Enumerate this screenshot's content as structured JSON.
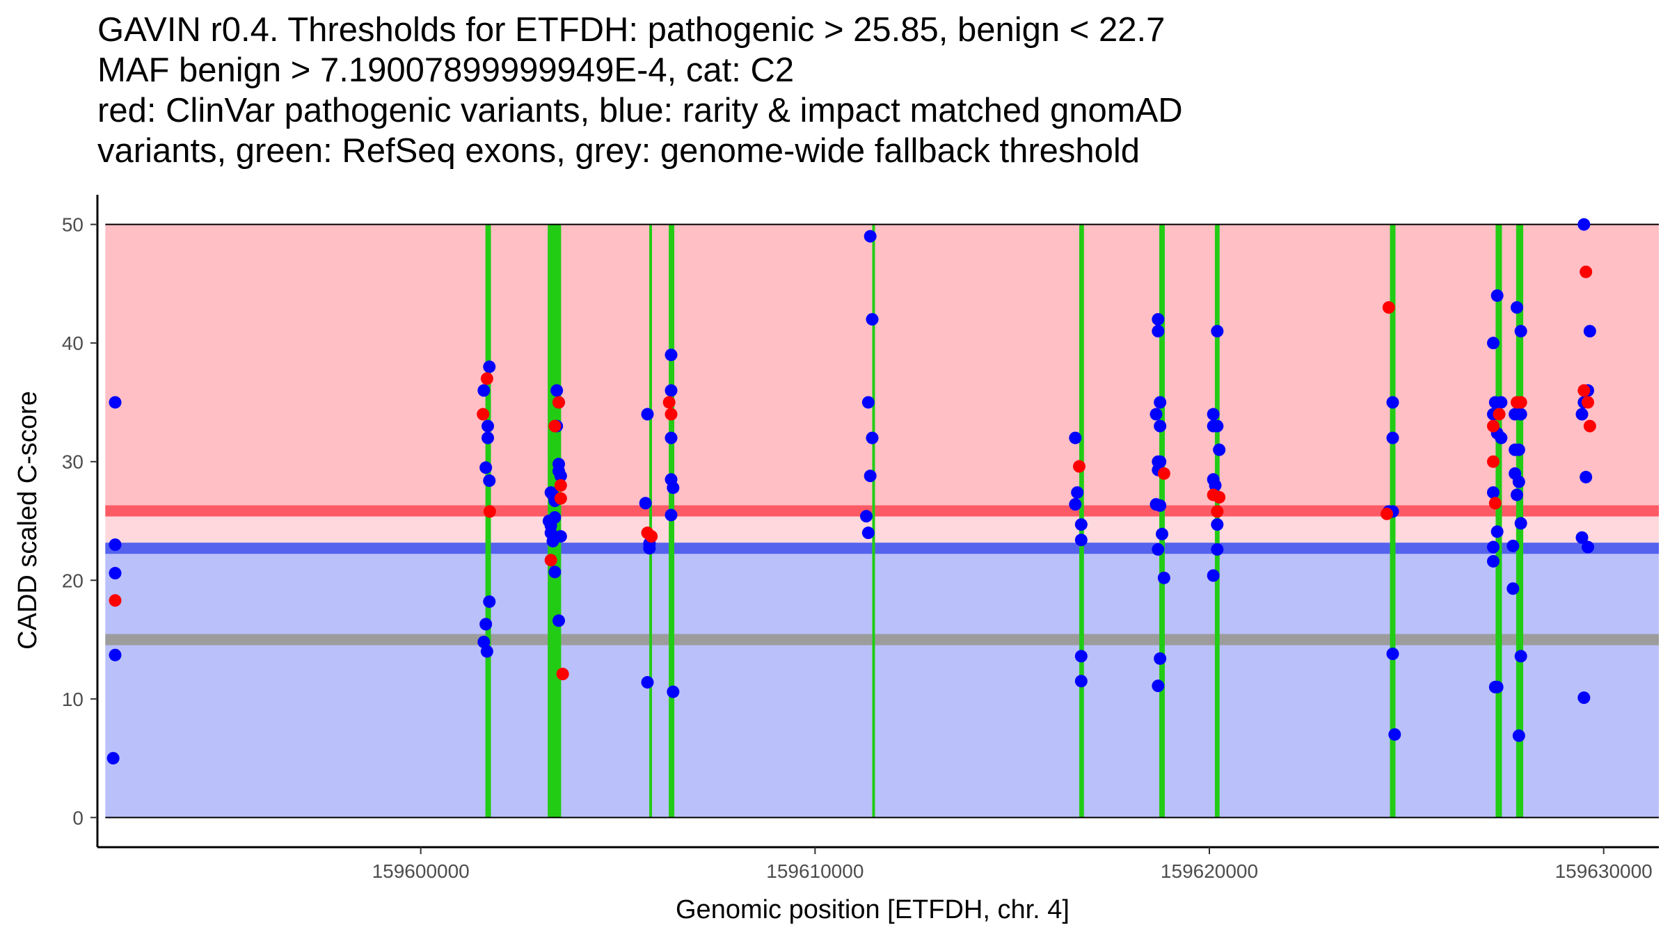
{
  "title": {
    "lines": [
      "GAVIN r0.4. Thresholds for ETFDH: pathogenic > 25.85, benign < 22.7",
      "MAF benign > 7.19007899999949E-4, cat: C2",
      "red: ClinVar pathogenic variants, blue: rarity & impact matched gnomAD",
      "variants, green: RefSeq exons, grey: genome-wide fallback threshold"
    ]
  },
  "chart_data": {
    "type": "scatter",
    "xlabel": "Genomic position [ETFDH, chr. 4]",
    "ylabel": "CADD scaled C-score",
    "xlim": [
      159591800,
      159631400
    ],
    "ylim": [
      -2.5,
      52.5
    ],
    "x_ticks": [
      159600000,
      159610000,
      159620000,
      159630000
    ],
    "x_tick_labels": [
      "159600000",
      "159610000",
      "159620000",
      "159630000"
    ],
    "y_ticks": [
      0,
      10,
      20,
      30,
      40,
      50
    ],
    "y_tick_labels": [
      "0",
      "10",
      "20",
      "30",
      "40",
      "50"
    ],
    "region": {
      "x_start": 159592000,
      "x_end": 159631400
    },
    "bands": [
      {
        "name": "pathogenic-zone",
        "y0": 25.85,
        "y1": 50,
        "color": "#ffbfc5"
      },
      {
        "name": "grey-zone",
        "y0": 22.7,
        "y1": 25.85,
        "color": "#ffd8dd"
      },
      {
        "name": "benign-zone",
        "y0": 0,
        "y1": 22.7,
        "color": "#bac0fa"
      }
    ],
    "thresholds": [
      {
        "name": "pathogenic-threshold",
        "y": 25.85,
        "color": "#fc5b66"
      },
      {
        "name": "benign-threshold",
        "y": 22.7,
        "color": "#5462ee"
      },
      {
        "name": "fallback-threshold",
        "y": 15.0,
        "color": "#9c9c9c"
      }
    ],
    "exons": [
      {
        "start": 159601640,
        "end": 159601780
      },
      {
        "start": 159603220,
        "end": 159603560
      },
      {
        "start": 159605800,
        "end": 159605860
      },
      {
        "start": 159606290,
        "end": 159606430
      },
      {
        "start": 159611450,
        "end": 159611520
      },
      {
        "start": 159616700,
        "end": 159616820
      },
      {
        "start": 159618730,
        "end": 159618870
      },
      {
        "start": 159620140,
        "end": 159620260
      },
      {
        "start": 159624580,
        "end": 159624720
      },
      {
        "start": 159627260,
        "end": 159627420
      },
      {
        "start": 159627780,
        "end": 159627960
      }
    ],
    "series": [
      {
        "name": "gnomAD variants",
        "color": "#0000ff",
        "points": [
          [
            159592250,
            35
          ],
          [
            159592250,
            23
          ],
          [
            159592250,
            20.6
          ],
          [
            159592250,
            13.7
          ],
          [
            159592200,
            5
          ],
          [
            159601600,
            36
          ],
          [
            159601650,
            29.5
          ],
          [
            159601700,
            33
          ],
          [
            159601700,
            32
          ],
          [
            159601740,
            28.4
          ],
          [
            159601740,
            38
          ],
          [
            159601740,
            18.2
          ],
          [
            159601650,
            16.3
          ],
          [
            159601600,
            14.8
          ],
          [
            159601680,
            14
          ],
          [
            159603250,
            25
          ],
          [
            159603300,
            24.6
          ],
          [
            159603300,
            24
          ],
          [
            159603300,
            27.4
          ],
          [
            159603350,
            27.2
          ],
          [
            159603350,
            23.3
          ],
          [
            159603400,
            25.3
          ],
          [
            159603400,
            26.7
          ],
          [
            159603400,
            20.7
          ],
          [
            159603450,
            36
          ],
          [
            159603450,
            33
          ],
          [
            159603500,
            35
          ],
          [
            159603500,
            29.8
          ],
          [
            159603500,
            29.2
          ],
          [
            159603550,
            28.8
          ],
          [
            159603500,
            16.6
          ],
          [
            159603550,
            23.7
          ],
          [
            159605750,
            34
          ],
          [
            159605700,
            26.5
          ],
          [
            159605800,
            23.1
          ],
          [
            159605800,
            22.7
          ],
          [
            159605750,
            11.4
          ],
          [
            159606350,
            39
          ],
          [
            159606350,
            36
          ],
          [
            159606350,
            32
          ],
          [
            159606350,
            28.5
          ],
          [
            159606400,
            27.8
          ],
          [
            159606350,
            25.5
          ],
          [
            159606400,
            10.6
          ],
          [
            159611400,
            49
          ],
          [
            159611450,
            42
          ],
          [
            159611350,
            35
          ],
          [
            159611450,
            32
          ],
          [
            159611400,
            28.8
          ],
          [
            159611300,
            25.4
          ],
          [
            159611350,
            24
          ],
          [
            159616600,
            32
          ],
          [
            159616600,
            26.4
          ],
          [
            159616650,
            27.4
          ],
          [
            159616750,
            24.7
          ],
          [
            159616750,
            23.4
          ],
          [
            159616750,
            13.6
          ],
          [
            159616750,
            11.5
          ],
          [
            159618700,
            42
          ],
          [
            159618700,
            41
          ],
          [
            159618750,
            35
          ],
          [
            159618650,
            34
          ],
          [
            159618750,
            33
          ],
          [
            159618700,
            30
          ],
          [
            159618750,
            30
          ],
          [
            159618700,
            29.3
          ],
          [
            159618650,
            26.4
          ],
          [
            159618750,
            26.3
          ],
          [
            159618800,
            23.9
          ],
          [
            159618700,
            22.6
          ],
          [
            159618850,
            20.2
          ],
          [
            159618750,
            13.4
          ],
          [
            159618700,
            11.1
          ],
          [
            159620100,
            34
          ],
          [
            159620100,
            33
          ],
          [
            159620200,
            33
          ],
          [
            159620200,
            41
          ],
          [
            159620100,
            28.5
          ],
          [
            159620150,
            28
          ],
          [
            159620250,
            31
          ],
          [
            159620200,
            24.7
          ],
          [
            159620200,
            22.6
          ],
          [
            159620100,
            20.4
          ],
          [
            159624650,
            35
          ],
          [
            159624650,
            32
          ],
          [
            159624650,
            25.8
          ],
          [
            159624550,
            25.8
          ],
          [
            159624650,
            13.8
          ],
          [
            159624700,
            7
          ],
          [
            159627200,
            40
          ],
          [
            159627250,
            35
          ],
          [
            159627400,
            35
          ],
          [
            159627300,
            44
          ],
          [
            159627200,
            34
          ],
          [
            159627300,
            32.4
          ],
          [
            159627400,
            32
          ],
          [
            159627200,
            27.4
          ],
          [
            159627300,
            24.1
          ],
          [
            159627200,
            22.8
          ],
          [
            159627200,
            21.6
          ],
          [
            159627250,
            11
          ],
          [
            159627300,
            11
          ],
          [
            159627800,
            43
          ],
          [
            159627900,
            41
          ],
          [
            159627750,
            34
          ],
          [
            159627900,
            34
          ],
          [
            159627750,
            31
          ],
          [
            159627850,
            31
          ],
          [
            159627750,
            29
          ],
          [
            159627850,
            28.3
          ],
          [
            159627800,
            27.2
          ],
          [
            159627900,
            24.8
          ],
          [
            159627700,
            22.9
          ],
          [
            159627700,
            19.3
          ],
          [
            159627900,
            13.6
          ],
          [
            159627850,
            6.9
          ],
          [
            159629500,
            50
          ],
          [
            159629650,
            41
          ],
          [
            159629600,
            36
          ],
          [
            159629500,
            35
          ],
          [
            159629450,
            34
          ],
          [
            159629550,
            28.7
          ],
          [
            159629450,
            23.6
          ],
          [
            159629600,
            22.8
          ],
          [
            159629500,
            10.1
          ]
        ]
      },
      {
        "name": "ClinVar pathogenic variants",
        "color": "#ff0000",
        "points": [
          [
            159592250,
            18.3
          ],
          [
            159601580,
            34
          ],
          [
            159601680,
            37
          ],
          [
            159601750,
            25.8
          ],
          [
            159603300,
            21.7
          ],
          [
            159603400,
            33
          ],
          [
            159603500,
            35
          ],
          [
            159603550,
            28
          ],
          [
            159603550,
            26.9
          ],
          [
            159603600,
            12.1
          ],
          [
            159605750,
            24
          ],
          [
            159605850,
            23.7
          ],
          [
            159606300,
            35
          ],
          [
            159606350,
            34
          ],
          [
            159616700,
            29.6
          ],
          [
            159618850,
            29
          ],
          [
            159620100,
            27.2
          ],
          [
            159620250,
            27
          ],
          [
            159620200,
            25.8
          ],
          [
            159624500,
            25.6
          ],
          [
            159624550,
            43
          ],
          [
            159627200,
            33
          ],
          [
            159627200,
            30
          ],
          [
            159627250,
            26.5
          ],
          [
            159627350,
            34
          ],
          [
            159627800,
            35
          ],
          [
            159627900,
            35
          ],
          [
            159629550,
            46
          ],
          [
            159629500,
            36
          ],
          [
            159629600,
            35
          ],
          [
            159629650,
            33
          ]
        ]
      }
    ]
  }
}
